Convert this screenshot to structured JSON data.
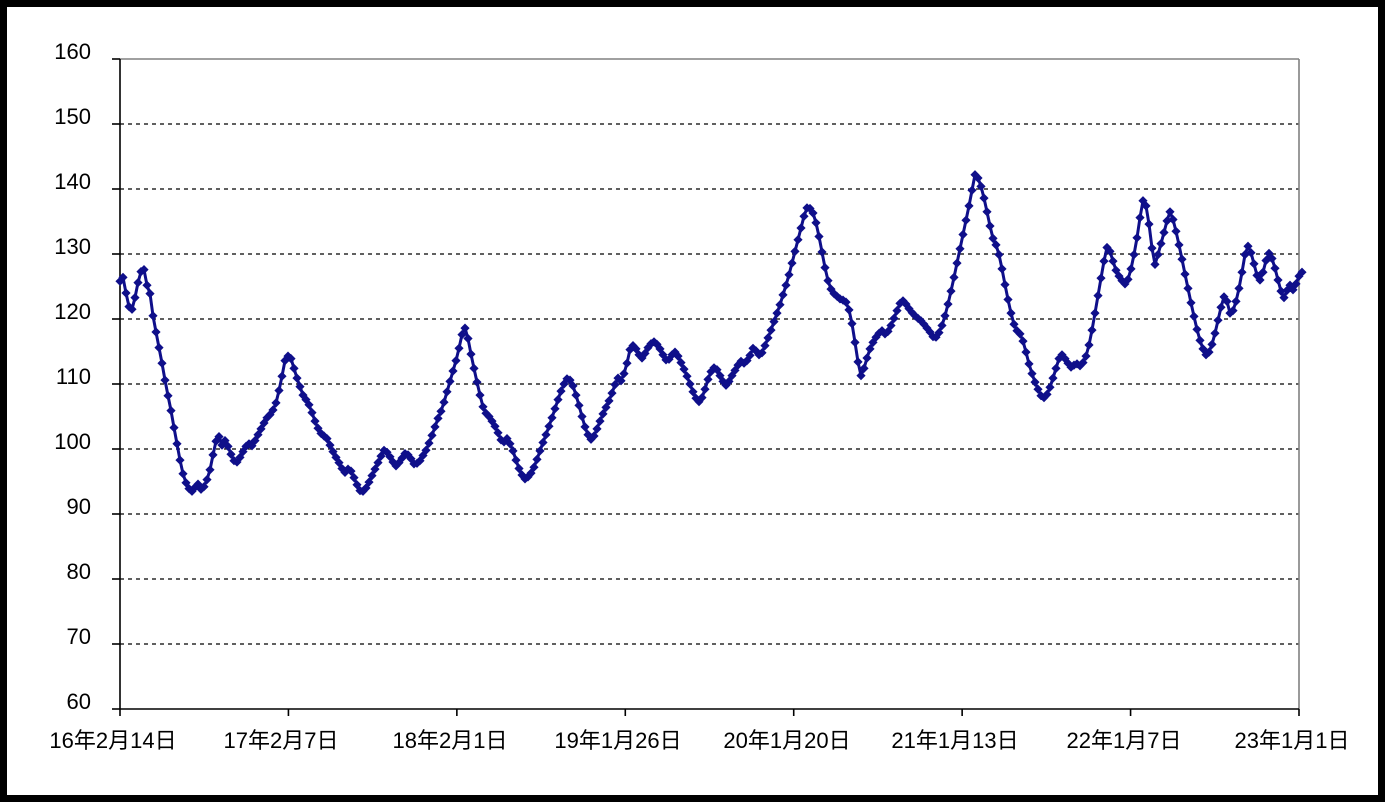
{
  "page": {
    "background": "#ffffff",
    "frame_border_color": "#000000"
  },
  "chart_data": {
    "type": "line",
    "title": "",
    "legend": "none",
    "grid": "horizontal-dashed-black",
    "axis_color": "#000000",
    "plot_border_color": "#808080",
    "ylim": [
      60,
      160
    ],
    "y_tick_step": 10,
    "y_tick_labels": [
      "160",
      "150",
      "140",
      "130",
      "120",
      "110",
      "100",
      "90",
      "80",
      "70",
      "60"
    ],
    "x_tick_labels": [
      "16年2月14日",
      "17年2月7日",
      "18年2月1日",
      "19年1月26日",
      "20年1月20日",
      "21年1月13日",
      "22年1月7日",
      "23年1月1日"
    ],
    "series": [
      {
        "name": "weekly-value-series",
        "color": "#0f0f8a",
        "marker": "diamond",
        "values": [
          125.8,
          126.4,
          124.0,
          121.9,
          121.5,
          123.3,
          125.6,
          127.3,
          127.6,
          125.2,
          123.9,
          120.5,
          118.0,
          115.6,
          113.2,
          110.6,
          108.2,
          105.9,
          103.3,
          100.8,
          98.3,
          96.2,
          94.8,
          93.9,
          93.5,
          94.1,
          94.6,
          93.8,
          94.2,
          95.3,
          96.8,
          99.1,
          101.2,
          101.9,
          100.6,
          101.3,
          100.4,
          99.2,
          98.2,
          98.0,
          98.7,
          99.6,
          100.4,
          100.8,
          100.5,
          101.3,
          102.2,
          103.1,
          104.0,
          104.8,
          105.3,
          106.0,
          107.1,
          109.0,
          111.2,
          113.6,
          114.3,
          113.9,
          112.4,
          110.9,
          109.6,
          108.3,
          107.6,
          106.8,
          105.6,
          104.3,
          103.2,
          102.4,
          102.0,
          101.6,
          100.6,
          99.6,
          98.7,
          97.9,
          97.0,
          96.4,
          96.9,
          96.6,
          95.6,
          94.5,
          93.6,
          93.5,
          94.0,
          94.9,
          95.9,
          96.9,
          97.9,
          98.9,
          99.8,
          99.5,
          98.8,
          98.0,
          97.4,
          97.9,
          98.6,
          99.3,
          99.1,
          98.5,
          97.7,
          97.8,
          98.2,
          99.0,
          99.8,
          100.9,
          102.1,
          103.4,
          104.7,
          105.8,
          107.2,
          108.8,
          110.4,
          112.0,
          113.6,
          115.5,
          117.6,
          118.6,
          117.0,
          114.6,
          112.4,
          110.3,
          108.3,
          106.5,
          105.5,
          105.0,
          104.3,
          103.5,
          102.5,
          101.4,
          101.1,
          101.6,
          100.8,
          99.7,
          98.3,
          97.0,
          96.0,
          95.4,
          95.7,
          96.3,
          97.2,
          98.4,
          99.7,
          101.0,
          102.2,
          103.5,
          104.8,
          106.2,
          107.6,
          108.9,
          110.0,
          110.8,
          110.6,
          109.7,
          108.3,
          106.7,
          105.0,
          103.4,
          102.2,
          101.5,
          102.0,
          103.1,
          104.3,
          105.4,
          106.4,
          107.4,
          108.6,
          109.9,
          110.9,
          110.5,
          111.6,
          113.2,
          115.3,
          115.9,
          115.4,
          114.5,
          114.0,
          114.7,
          115.6,
          116.2,
          116.5,
          116.1,
          115.4,
          114.5,
          113.7,
          113.8,
          114.5,
          114.9,
          114.3,
          113.3,
          112.3,
          111.2,
          110.0,
          108.8,
          107.8,
          107.3,
          107.9,
          109.2,
          110.7,
          111.9,
          112.5,
          112.2,
          111.3,
          110.4,
          109.8,
          110.4,
          111.3,
          112.1,
          112.9,
          113.5,
          113.2,
          113.6,
          114.4,
          115.5,
          115.1,
          114.5,
          114.8,
          115.9,
          117.1,
          118.3,
          119.6,
          120.9,
          122.2,
          123.7,
          125.2,
          126.8,
          128.6,
          130.4,
          132.2,
          134.0,
          135.8,
          137.1,
          137.0,
          136.3,
          134.8,
          132.7,
          130.3,
          127.9,
          125.9,
          124.6,
          123.9,
          123.5,
          123.1,
          122.9,
          122.6,
          121.4,
          119.3,
          116.4,
          113.4,
          111.3,
          112.4,
          114.0,
          115.4,
          116.4,
          117.2,
          117.8,
          118.2,
          117.7,
          118.1,
          119.0,
          120.1,
          121.3,
          122.4,
          122.8,
          122.3,
          121.6,
          121.0,
          120.5,
          120.1,
          119.7,
          119.2,
          118.6,
          118.0,
          117.3,
          117.2,
          117.9,
          119.0,
          120.5,
          122.3,
          124.3,
          126.4,
          128.6,
          130.8,
          133.0,
          135.2,
          137.4,
          139.8,
          142.2,
          141.7,
          140.4,
          138.6,
          136.5,
          134.3,
          132.4,
          131.4,
          129.9,
          127.7,
          125.3,
          123.0,
          120.9,
          119.2,
          118.2,
          117.7,
          116.6,
          114.9,
          113.1,
          111.6,
          110.3,
          109.2,
          108.2,
          107.9,
          108.4,
          109.5,
          110.9,
          112.4,
          113.9,
          114.5,
          113.9,
          113.2,
          112.6,
          112.9,
          113.1,
          112.8,
          113.3,
          114.3,
          116.0,
          118.3,
          120.9,
          123.6,
          126.3,
          128.9,
          131.0,
          130.4,
          128.9,
          127.5,
          126.6,
          125.9,
          125.4,
          126.1,
          127.7,
          129.9,
          132.5,
          135.6,
          138.2,
          137.4,
          134.6,
          130.9,
          128.4,
          129.9,
          131.6,
          133.3,
          135.1,
          136.5,
          135.3,
          133.5,
          131.4,
          129.2,
          126.9,
          124.7,
          122.5,
          120.4,
          118.4,
          116.7,
          115.4,
          114.5,
          114.9,
          116.1,
          117.8,
          119.8,
          121.8,
          123.4,
          122.7,
          120.9,
          121.3,
          122.7,
          124.7,
          127.2,
          129.9,
          131.2,
          130.2,
          128.5,
          126.7,
          126.0,
          127.2,
          129.0,
          130.1,
          129.3,
          127.8,
          126.0,
          124.3,
          123.3,
          124.4,
          125.2,
          124.5,
          125.4,
          126.6,
          127.2
        ]
      }
    ]
  }
}
